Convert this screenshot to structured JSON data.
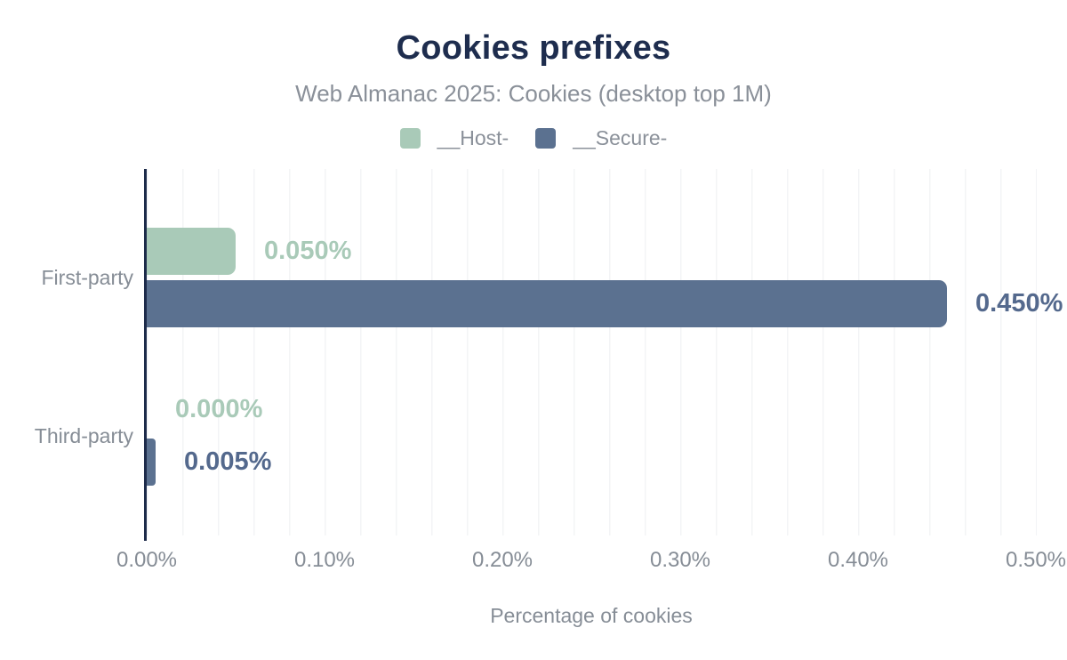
{
  "header": {
    "title": "Cookies prefixes",
    "subtitle": "Web Almanac 2025: Cookies (desktop top 1M)"
  },
  "legend": [
    {
      "label": "__Host-",
      "color": "#a9cab8"
    },
    {
      "label": "__Secure-",
      "color": "#5b7190"
    }
  ],
  "chart_data": {
    "type": "bar",
    "orientation": "horizontal",
    "title": "Cookies prefixes",
    "subtitle": "Web Almanac 2025: Cookies (desktop top 1M)",
    "categories": [
      "First-party",
      "Third-party"
    ],
    "series": [
      {
        "name": "__Host-",
        "color": "#a9cab8",
        "label_color": "#a9cab8",
        "values": [
          0.05,
          0.0
        ],
        "value_labels": [
          "0.050%",
          "0.000%"
        ]
      },
      {
        "name": "__Secure-",
        "color": "#5b7190",
        "label_color": "#54698d",
        "values": [
          0.45,
          0.005
        ],
        "value_labels": [
          "0.450%",
          "0.005%"
        ]
      }
    ],
    "xlabel": "Percentage of cookies",
    "ylabel": "",
    "xlim": [
      0,
      0.5
    ],
    "x_ticks": [
      {
        "value": 0.0,
        "label": "0.00%"
      },
      {
        "value": 0.1,
        "label": "0.10%"
      },
      {
        "value": 0.2,
        "label": "0.20%"
      },
      {
        "value": 0.3,
        "label": "0.30%"
      },
      {
        "value": 0.4,
        "label": "0.40%"
      },
      {
        "value": 0.5,
        "label": "0.50%"
      }
    ],
    "grid": "minor-vertical",
    "grid_step": 0.02,
    "legend_position": "top"
  },
  "colors": {
    "title_text": "#1e2d4e",
    "muted_text": "#868d96",
    "axis_line": "#1d2b4a",
    "gridline": "#f3f4f6",
    "host_green": "#a9cab8",
    "secure_slate": "#5b7190",
    "secure_label": "#54698d",
    "background": "#ffffff"
  }
}
